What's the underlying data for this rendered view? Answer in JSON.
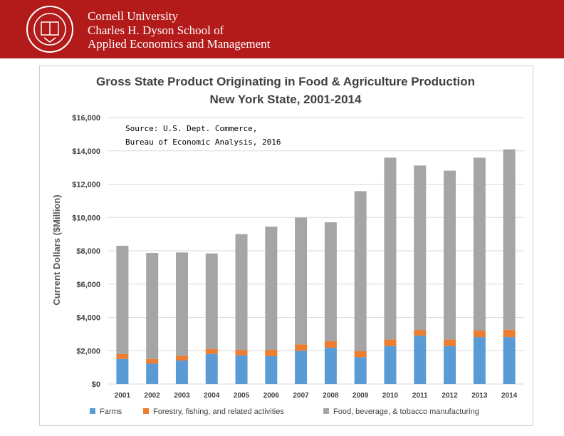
{
  "header": {
    "line1": "Cornell University",
    "line2": "Charles H. Dyson School of",
    "line3": "Applied Economics and Management",
    "seal_text": "CORNELL UNIVERSITY FOUNDED A.D. 1865",
    "background_color": "#b31b1b"
  },
  "chart_data": {
    "type": "bar",
    "stacked": true,
    "title": "Gross State Product Originating in Food & Agriculture Production",
    "subtitle": "New York State, 2001-2014",
    "ylabel": "Current Dollars ($Million)",
    "xlabel": "",
    "annotation_line1": "Source:  U.S. Dept. Commerce,",
    "annotation_line2": "Bureau of Economic Analysis, 2016",
    "ylim": [
      0,
      16000
    ],
    "yticks": [
      "$0",
      "$2,000",
      "$4,000",
      "$6,000",
      "$8,000",
      "$10,000",
      "$12,000",
      "$14,000",
      "$16,000"
    ],
    "grid": true,
    "legend_position": "bottom",
    "categories": [
      "2001",
      "2002",
      "2003",
      "2004",
      "2005",
      "2006",
      "2007",
      "2008",
      "2009",
      "2010",
      "2011",
      "2012",
      "2013",
      "2014"
    ],
    "series": [
      {
        "name": "Farms",
        "color": "#5b9bd5",
        "values": [
          1500,
          1220,
          1410,
          1810,
          1720,
          1670,
          2000,
          2180,
          1610,
          2280,
          2900,
          2280,
          2820,
          2820
        ]
      },
      {
        "name": "Forestry, fishing, and related activities",
        "color": "#ed7d31",
        "values": [
          300,
          290,
          290,
          300,
          330,
          380,
          380,
          390,
          360,
          390,
          350,
          390,
          390,
          440
        ]
      },
      {
        "name": "Food, beverage, & tobacco manufacturing",
        "color": "#a5a5a5",
        "values": [
          6500,
          6360,
          6200,
          5730,
          6950,
          7400,
          7620,
          7140,
          9610,
          10920,
          9870,
          10140,
          10380,
          10830
        ]
      }
    ]
  }
}
